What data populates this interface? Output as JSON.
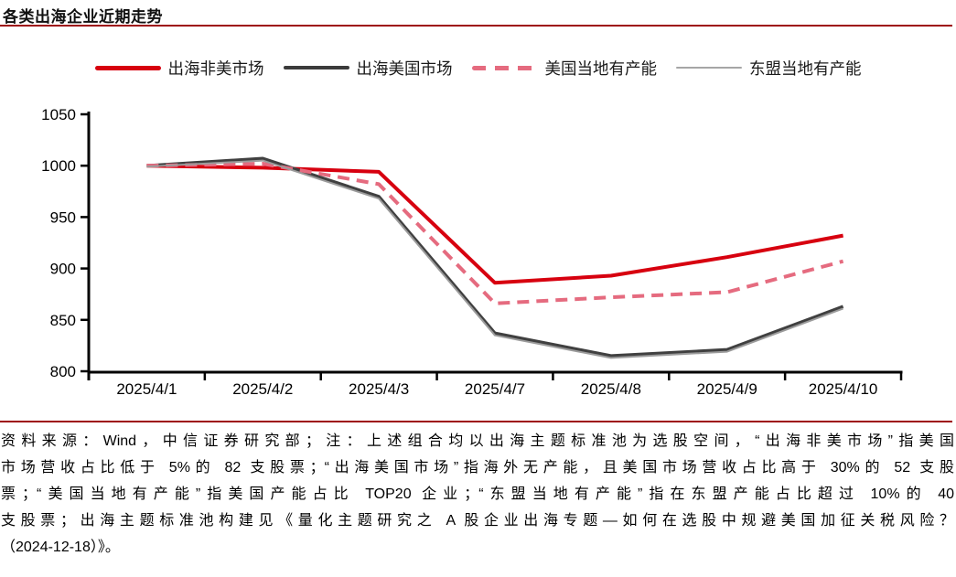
{
  "title": "各类出海企业近期走势",
  "accent_color": "#9E0B0F",
  "legend": {
    "items": [
      {
        "label": "出海非美市场",
        "color": "#D7000F",
        "dash": "none",
        "weight": 5
      },
      {
        "label": "出海美国市场",
        "color": "#3B3B3B",
        "dash": "none",
        "weight": 4.5
      },
      {
        "label": "美国当地有产能",
        "color": "#E56B7F",
        "dash": "dashed",
        "weight": 5
      },
      {
        "label": "东盟当地有产能",
        "color": "#A6A6A6",
        "dash": "none",
        "weight": 1.5
      }
    ]
  },
  "chart_data": {
    "type": "line",
    "title": "各类出海企业近期走势",
    "categories": [
      "2025/4/1",
      "2025/4/2",
      "2025/4/3",
      "2025/4/7",
      "2025/4/8",
      "2025/4/9",
      "2025/4/10"
    ],
    "series": [
      {
        "name": "出海非美市场",
        "color": "#D7000F",
        "width": 4,
        "dash": null,
        "values": [
          1000,
          998,
          994,
          886,
          893,
          911,
          932
        ]
      },
      {
        "name": "出海美国市场",
        "color": "#404040",
        "width": 3.5,
        "dash": null,
        "values": [
          1000,
          1007,
          970,
          837,
          815,
          821,
          863
        ]
      },
      {
        "name": "美国当地有产能",
        "color": "#E56B7F",
        "width": 4,
        "dash": "13 8",
        "values": [
          1000,
          1002,
          982,
          866,
          872,
          877,
          907
        ]
      },
      {
        "name": "东盟当地有产能",
        "color": "#9B9B9B",
        "width": 2,
        "dash": null,
        "values": [
          999,
          1005,
          968,
          835,
          813,
          819,
          861
        ]
      }
    ],
    "xlabel": "",
    "ylabel": "",
    "ylim": [
      800,
      1050
    ],
    "yticks": [
      800,
      850,
      900,
      950,
      1000,
      1050
    ],
    "grid": false,
    "legend_position": "top"
  },
  "footnote": {
    "lines": [
      "资料来源：Wind，中信证券研究部；注：上述组合均以出海主题标准池为选股空间，“出海非美市场”指美国",
      "市场营收占比低于 5%的 82 支股票；“出海美国市场”指海外无产能，且美国市场营收占比高于 30%的 52 支股",
      "票；“美国当地有产能”指美国产能占比 TOP20 企业；“东盟当地有产能”指在东盟产能占比超过 10%的 40",
      "支股票；出海主题标准池构建见《量化主题研究之 A 股企业出海专题—如何在选股中规避美国加征关税风险？",
      "（2024-12-18）》。"
    ]
  }
}
